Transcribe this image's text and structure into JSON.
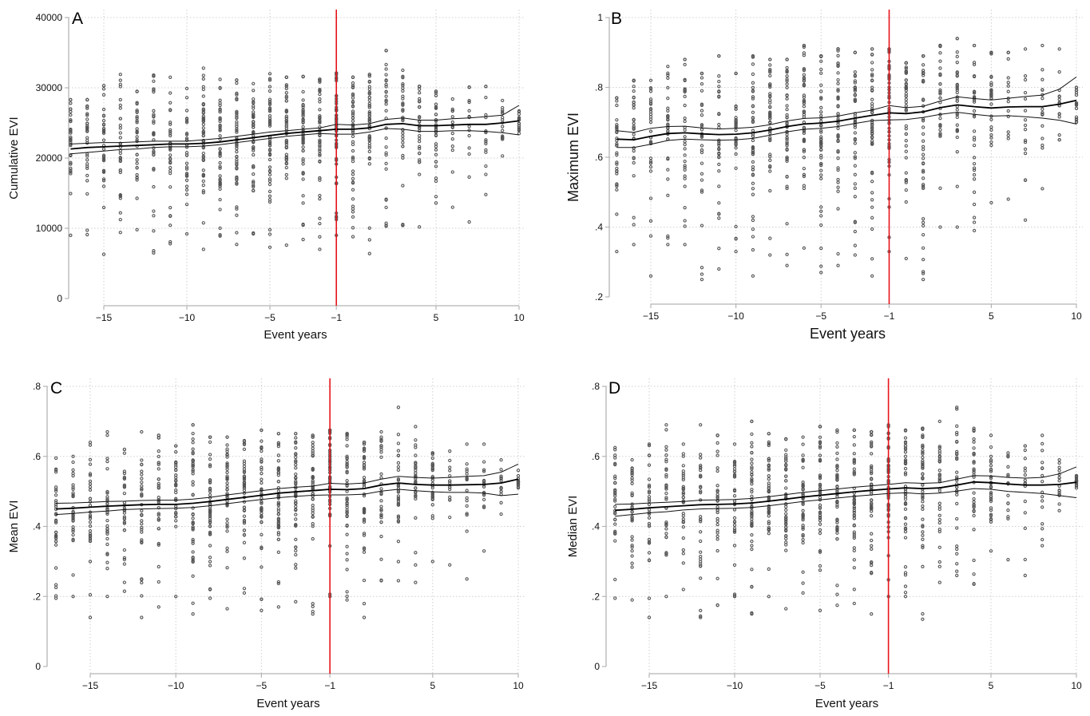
{
  "chart_data": [
    {
      "type": "scatter",
      "panel_label": "A",
      "title": "",
      "xlabel": "Event years",
      "ylabel": "Cumulative EVI",
      "xlim": [
        -17,
        10
      ],
      "ylim": [
        0,
        40000
      ],
      "xticks": [
        -15,
        -10,
        -5,
        -1,
        5,
        10
      ],
      "xtick_labels": [
        "−15",
        "−10",
        "−5",
        "−1",
        "5",
        "10"
      ],
      "yticks": [
        0,
        10000,
        20000,
        30000,
        40000
      ],
      "ytick_labels": [
        "0",
        "10000",
        "20000",
        "30000",
        "40000"
      ],
      "grid": true,
      "reference_line": {
        "x": -1,
        "color": "#e8141b"
      },
      "scatter_summary": {
        "x": [
          -17,
          -16,
          -15,
          -14,
          -13,
          -12,
          -11,
          -10,
          -9,
          -8,
          -7,
          -6,
          -5,
          -4,
          -3,
          -2,
          -1,
          0,
          1,
          2,
          3,
          4,
          5,
          6,
          7,
          8,
          9,
          10
        ],
        "ymin": [
          9000,
          9100,
          6300,
          9400,
          9800,
          6500,
          7800,
          9200,
          7000,
          8900,
          7700,
          9200,
          7300,
          7600,
          8400,
          7000,
          9000,
          8800,
          6400,
          10300,
          10400,
          10200,
          13600,
          13000,
          10900,
          14800,
          20300,
          23500
        ],
        "ymax": [
          28300,
          28300,
          30300,
          31900,
          29500,
          31800,
          31500,
          29900,
          32800,
          31200,
          31100,
          30600,
          32000,
          31500,
          31600,
          31200,
          32100,
          31500,
          31900,
          35300,
          32500,
          30200,
          29500,
          28400,
          30100,
          30200,
          28200,
          26700
        ],
        "center": [
          22500,
          22500,
          21700,
          22200,
          23000,
          22500,
          22300,
          22500,
          22800,
          22800,
          23000,
          23600,
          23200,
          23600,
          24200,
          23400,
          24800,
          24800,
          25200,
          25500,
          25500,
          25700,
          24700,
          24300,
          24800,
          24400,
          24600,
          25000
        ]
      },
      "fit": {
        "x": [
          -17,
          -16,
          -15,
          -14,
          -13,
          -12,
          -11,
          -10,
          -9,
          -8,
          -7,
          -6,
          -5,
          -4,
          -3,
          -2,
          -1,
          0,
          1,
          2,
          3,
          4,
          5,
          6,
          7,
          8,
          9,
          10
        ],
        "mean": [
          21300,
          21500,
          21600,
          21700,
          21800,
          21900,
          22000,
          22000,
          22100,
          22300,
          22600,
          22900,
          23200,
          23500,
          23700,
          23900,
          24100,
          24100,
          24300,
          24800,
          24900,
          24600,
          24600,
          24700,
          24800,
          24800,
          25000,
          25300
        ],
        "upper": [
          22000,
          22100,
          22200,
          22200,
          22300,
          22400,
          22400,
          22400,
          22600,
          22800,
          23100,
          23400,
          23700,
          23900,
          24100,
          24300,
          24800,
          24700,
          24900,
          25500,
          25700,
          25400,
          25400,
          25600,
          25700,
          25900,
          26100,
          27500
        ],
        "lower": [
          20600,
          20800,
          21000,
          21200,
          21300,
          21500,
          21600,
          21600,
          21700,
          21900,
          22200,
          22500,
          22800,
          23100,
          23300,
          23500,
          23400,
          23400,
          23700,
          24200,
          24100,
          23800,
          23800,
          23900,
          23900,
          23800,
          23600,
          23300
        ]
      }
    },
    {
      "type": "scatter",
      "panel_label": "B",
      "title": "",
      "xlabel": "Event years",
      "ylabel": "Maximum EVI",
      "xlim": [
        -17,
        10
      ],
      "ylim": [
        0.2,
        1.0
      ],
      "xticks": [
        -15,
        -10,
        -5,
        -1,
        5,
        10
      ],
      "xtick_labels": [
        "−15",
        "−10",
        "−5",
        "−1",
        "5",
        "10"
      ],
      "yticks": [
        0.2,
        0.4,
        0.6,
        0.8,
        1.0
      ],
      "ytick_labels": [
        ".2",
        ".4",
        ".6",
        ".8",
        "1"
      ],
      "grid": true,
      "reference_line": {
        "x": -1,
        "color": "#e8141b"
      },
      "scatter_summary": {
        "x": [
          -17,
          -16,
          -15,
          -14,
          -13,
          -12,
          -11,
          -10,
          -9,
          -8,
          -7,
          -6,
          -5,
          -4,
          -3,
          -2,
          -1,
          0,
          1,
          2,
          3,
          4,
          5,
          6,
          7,
          8,
          9,
          10
        ],
        "ymin": [
          0.33,
          0.35,
          0.26,
          0.35,
          0.35,
          0.25,
          0.28,
          0.33,
          0.26,
          0.32,
          0.29,
          0.34,
          0.27,
          0.29,
          0.32,
          0.26,
          0.33,
          0.31,
          0.25,
          0.4,
          0.4,
          0.39,
          0.47,
          0.48,
          0.42,
          0.51,
          0.65,
          0.7
        ],
        "ymax": [
          0.77,
          0.82,
          0.82,
          0.86,
          0.88,
          0.84,
          0.89,
          0.84,
          0.89,
          0.88,
          0.88,
          0.92,
          0.89,
          0.91,
          0.9,
          0.91,
          0.91,
          0.87,
          0.89,
          0.92,
          0.94,
          0.92,
          0.9,
          0.9,
          0.91,
          0.92,
          0.91,
          0.8
        ],
        "center": [
          0.65,
          0.7,
          0.66,
          0.7,
          0.72,
          0.68,
          0.69,
          0.7,
          0.7,
          0.7,
          0.72,
          0.72,
          0.72,
          0.73,
          0.74,
          0.75,
          0.77,
          0.75,
          0.76,
          0.78,
          0.78,
          0.75,
          0.76,
          0.78,
          0.76,
          0.76,
          0.74,
          0.76
        ]
      },
      "fit": {
        "x": [
          -17,
          -16,
          -15,
          -14,
          -13,
          -12,
          -11,
          -10,
          -9,
          -8,
          -7,
          -6,
          -5,
          -4,
          -3,
          -2,
          -1,
          0,
          1,
          2,
          3,
          4,
          5,
          6,
          7,
          8,
          9,
          10
        ],
        "mean": [
          0.652,
          0.65,
          0.66,
          0.668,
          0.67,
          0.667,
          0.665,
          0.666,
          0.67,
          0.678,
          0.688,
          0.695,
          0.698,
          0.703,
          0.712,
          0.72,
          0.727,
          0.725,
          0.73,
          0.742,
          0.75,
          0.745,
          0.741,
          0.744,
          0.745,
          0.745,
          0.752,
          0.763
        ],
        "upper": [
          0.676,
          0.671,
          0.683,
          0.688,
          0.689,
          0.684,
          0.681,
          0.683,
          0.686,
          0.693,
          0.704,
          0.711,
          0.713,
          0.718,
          0.727,
          0.735,
          0.748,
          0.742,
          0.746,
          0.761,
          0.773,
          0.768,
          0.764,
          0.769,
          0.774,
          0.778,
          0.795,
          0.83
        ],
        "lower": [
          0.628,
          0.628,
          0.637,
          0.648,
          0.652,
          0.65,
          0.649,
          0.65,
          0.654,
          0.663,
          0.673,
          0.68,
          0.683,
          0.688,
          0.697,
          0.705,
          0.707,
          0.708,
          0.714,
          0.723,
          0.729,
          0.723,
          0.718,
          0.719,
          0.716,
          0.712,
          0.706,
          0.695
        ]
      }
    },
    {
      "type": "scatter",
      "panel_label": "C",
      "title": "",
      "xlabel": "Event years",
      "ylabel": "Mean EVI",
      "xlim": [
        -17,
        10
      ],
      "ylim": [
        0,
        0.8
      ],
      "xticks": [
        -15,
        -10,
        -5,
        -1,
        5,
        10
      ],
      "xtick_labels": [
        "−15",
        "−10",
        "−5",
        "−1",
        "5",
        "10"
      ],
      "yticks": [
        0,
        0.2,
        0.4,
        0.6,
        0.8
      ],
      "ytick_labels": [
        "0",
        ".2",
        ".4",
        ".6",
        ".8"
      ],
      "grid": true,
      "reference_line": {
        "x": -1,
        "color": "#e8141b"
      },
      "scatter_summary": {
        "x": [
          -17,
          -16,
          -15,
          -14,
          -13,
          -12,
          -11,
          -10,
          -9,
          -8,
          -7,
          -6,
          -5,
          -4,
          -3,
          -2,
          -1,
          0,
          1,
          2,
          3,
          4,
          5,
          6,
          7,
          8,
          9,
          10
        ],
        "ymin": [
          0.195,
          0.2,
          0.14,
          0.2,
          0.215,
          0.14,
          0.17,
          0.2,
          0.15,
          0.195,
          0.165,
          0.21,
          0.16,
          0.17,
          0.185,
          0.15,
          0.2,
          0.19,
          0.14,
          0.245,
          0.245,
          0.24,
          0.3,
          0.29,
          0.25,
          0.33,
          0.435,
          0.51
        ],
        "ymax": [
          0.595,
          0.6,
          0.64,
          0.67,
          0.62,
          0.67,
          0.66,
          0.63,
          0.69,
          0.655,
          0.655,
          0.645,
          0.675,
          0.665,
          0.665,
          0.66,
          0.675,
          0.665,
          0.64,
          0.67,
          0.74,
          0.685,
          0.61,
          0.615,
          0.635,
          0.635,
          0.59,
          0.56
        ],
        "center": [
          0.46,
          0.46,
          0.44,
          0.47,
          0.48,
          0.45,
          0.47,
          0.48,
          0.48,
          0.49,
          0.49,
          0.49,
          0.5,
          0.51,
          0.51,
          0.52,
          0.54,
          0.52,
          0.52,
          0.53,
          0.53,
          0.52,
          0.52,
          0.52,
          0.52,
          0.52,
          0.52,
          0.53
        ]
      },
      "fit": {
        "x": [
          -17,
          -16,
          -15,
          -14,
          -13,
          -12,
          -11,
          -10,
          -9,
          -8,
          -7,
          -6,
          -5,
          -4,
          -3,
          -2,
          -1,
          0,
          1,
          2,
          3,
          4,
          5,
          6,
          7,
          8,
          9,
          10
        ],
        "mean": [
          0.45,
          0.452,
          0.455,
          0.458,
          0.46,
          0.462,
          0.463,
          0.463,
          0.466,
          0.471,
          0.477,
          0.483,
          0.489,
          0.495,
          0.499,
          0.502,
          0.506,
          0.505,
          0.508,
          0.518,
          0.524,
          0.52,
          0.518,
          0.518,
          0.519,
          0.52,
          0.524,
          0.535
        ],
        "upper": [
          0.466,
          0.467,
          0.469,
          0.471,
          0.472,
          0.474,
          0.475,
          0.475,
          0.478,
          0.483,
          0.49,
          0.496,
          0.502,
          0.508,
          0.512,
          0.515,
          0.523,
          0.521,
          0.524,
          0.535,
          0.543,
          0.54,
          0.538,
          0.54,
          0.543,
          0.545,
          0.555,
          0.578
        ],
        "lower": [
          0.434,
          0.437,
          0.441,
          0.444,
          0.448,
          0.45,
          0.451,
          0.452,
          0.454,
          0.459,
          0.465,
          0.471,
          0.477,
          0.482,
          0.486,
          0.489,
          0.49,
          0.49,
          0.492,
          0.501,
          0.506,
          0.502,
          0.499,
          0.497,
          0.497,
          0.495,
          0.488,
          0.492
        ]
      }
    },
    {
      "type": "scatter",
      "panel_label": "D",
      "title": "",
      "xlabel": "Event years",
      "ylabel": "Median EVI",
      "xlim": [
        -17,
        10
      ],
      "ylim": [
        0,
        0.8
      ],
      "xticks": [
        -15,
        -10,
        -5,
        -1,
        5,
        10
      ],
      "xtick_labels": [
        "−15",
        "−10",
        "−5",
        "−1",
        "5",
        "10"
      ],
      "yticks": [
        0,
        0.2,
        0.4,
        0.6,
        0.8
      ],
      "ytick_labels": [
        "0",
        ".2",
        ".4",
        ".6",
        ".8"
      ],
      "grid": true,
      "reference_line": {
        "x": -1,
        "color": "#e8141b"
      },
      "scatter_summary": {
        "x": [
          -17,
          -16,
          -15,
          -14,
          -13,
          -12,
          -11,
          -10,
          -9,
          -8,
          -7,
          -6,
          -5,
          -4,
          -3,
          -2,
          -1,
          0,
          1,
          2,
          3,
          4,
          5,
          6,
          7,
          8,
          9,
          10
        ],
        "ymin": [
          0.195,
          0.19,
          0.14,
          0.2,
          0.22,
          0.14,
          0.175,
          0.2,
          0.15,
          0.2,
          0.165,
          0.21,
          0.16,
          0.175,
          0.18,
          0.15,
          0.2,
          0.2,
          0.135,
          0.24,
          0.26,
          0.235,
          0.33,
          0.305,
          0.26,
          0.345,
          0.445,
          0.51
        ],
        "ymax": [
          0.625,
          0.59,
          0.635,
          0.69,
          0.635,
          0.69,
          0.66,
          0.635,
          0.7,
          0.665,
          0.65,
          0.655,
          0.685,
          0.675,
          0.675,
          0.67,
          0.69,
          0.675,
          0.68,
          0.7,
          0.74,
          0.68,
          0.66,
          0.61,
          0.63,
          0.66,
          0.59,
          0.545
        ],
        "center": [
          0.46,
          0.45,
          0.45,
          0.47,
          0.49,
          0.46,
          0.47,
          0.48,
          0.48,
          0.49,
          0.49,
          0.49,
          0.5,
          0.51,
          0.51,
          0.52,
          0.54,
          0.52,
          0.52,
          0.53,
          0.53,
          0.53,
          0.53,
          0.52,
          0.52,
          0.52,
          0.52,
          0.53
        ]
      },
      "fit": {
        "x": [
          -17,
          -16,
          -15,
          -14,
          -13,
          -12,
          -11,
          -10,
          -9,
          -8,
          -7,
          -6,
          -5,
          -4,
          -3,
          -2,
          -1,
          0,
          1,
          2,
          3,
          4,
          5,
          6,
          7,
          8,
          9,
          10
        ],
        "mean": [
          0.446,
          0.449,
          0.453,
          0.456,
          0.459,
          0.462,
          0.463,
          0.464,
          0.467,
          0.472,
          0.478,
          0.484,
          0.489,
          0.494,
          0.499,
          0.503,
          0.507,
          0.51,
          0.508,
          0.51,
          0.518,
          0.527,
          0.525,
          0.521,
          0.518,
          0.518,
          0.52,
          0.526
        ],
        "upper": [
          0.463,
          0.464,
          0.467,
          0.469,
          0.471,
          0.475,
          0.476,
          0.477,
          0.48,
          0.485,
          0.491,
          0.497,
          0.502,
          0.507,
          0.512,
          0.516,
          0.52,
          0.525,
          0.523,
          0.525,
          0.535,
          0.545,
          0.544,
          0.54,
          0.538,
          0.54,
          0.55,
          0.57
        ],
        "lower": [
          0.429,
          0.434,
          0.439,
          0.442,
          0.447,
          0.45,
          0.451,
          0.452,
          0.454,
          0.459,
          0.465,
          0.471,
          0.476,
          0.481,
          0.486,
          0.49,
          0.494,
          0.496,
          0.493,
          0.495,
          0.501,
          0.508,
          0.506,
          0.5,
          0.497,
          0.494,
          0.488,
          0.482
        ]
      }
    }
  ]
}
